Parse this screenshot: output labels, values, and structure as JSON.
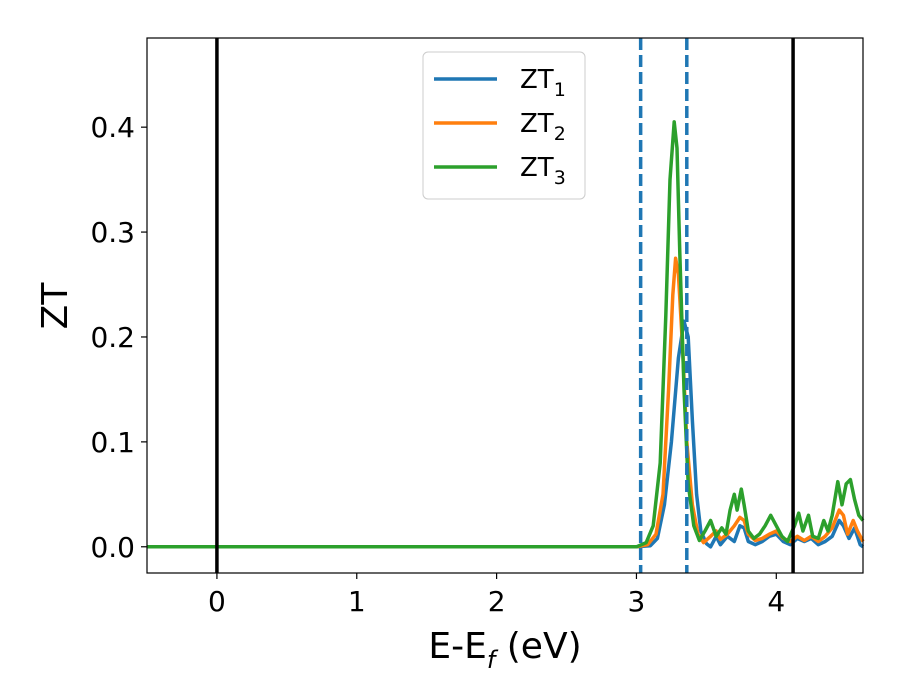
{
  "chart_data": {
    "type": "line",
    "title": "",
    "xlabel": {
      "main": "E-E",
      "sub": "f",
      "unit": " (eV)"
    },
    "ylabel": "ZT",
    "xlim": [
      -0.5,
      4.62
    ],
    "ylim": [
      -0.025,
      0.485
    ],
    "xticks": [
      0,
      1,
      2,
      3,
      4
    ],
    "xtick_labels": [
      "0",
      "1",
      "2",
      "3",
      "4"
    ],
    "yticks": [
      0.0,
      0.1,
      0.2,
      0.3,
      0.4
    ],
    "ytick_labels": [
      "0.0",
      "0.1",
      "0.2",
      "0.3",
      "0.4"
    ],
    "grid": false,
    "legend_position": "top-center",
    "colors": {
      "ZT1": "#1f77b4",
      "ZT2": "#ff7f0e",
      "ZT3": "#2ca02c",
      "ref": "#000000"
    },
    "vertical_lines": [
      {
        "x": 0.0,
        "style": "solid",
        "color": "#000000"
      },
      {
        "x": 4.12,
        "style": "solid",
        "color": "#000000"
      },
      {
        "x": 3.03,
        "style": "dashed",
        "color": "#1f77b4"
      },
      {
        "x": 3.36,
        "style": "dashed",
        "color": "#1f77b4"
      }
    ],
    "series": [
      {
        "name": {
          "main": "ZT",
          "sub": "1"
        },
        "color": "#1f77b4",
        "points": [
          [
            -0.5,
            0
          ],
          [
            3.0,
            0
          ],
          [
            3.1,
            0.001
          ],
          [
            3.15,
            0.008
          ],
          [
            3.2,
            0.04
          ],
          [
            3.25,
            0.1
          ],
          [
            3.3,
            0.18
          ],
          [
            3.34,
            0.215
          ],
          [
            3.37,
            0.2
          ],
          [
            3.4,
            0.12
          ],
          [
            3.43,
            0.05
          ],
          [
            3.46,
            0.015
          ],
          [
            3.5,
            0.003
          ],
          [
            3.53,
            0.0
          ],
          [
            3.57,
            0.01
          ],
          [
            3.6,
            0.002
          ],
          [
            3.65,
            0.01
          ],
          [
            3.7,
            0.005
          ],
          [
            3.74,
            0.02
          ],
          [
            3.77,
            0.018
          ],
          [
            3.8,
            0.005
          ],
          [
            3.85,
            0.002
          ],
          [
            3.9,
            0.005
          ],
          [
            3.95,
            0.01
          ],
          [
            4.0,
            0.012
          ],
          [
            4.05,
            0.005
          ],
          [
            4.1,
            0.002
          ],
          [
            4.15,
            0.008
          ],
          [
            4.2,
            0.005
          ],
          [
            4.25,
            0.008
          ],
          [
            4.3,
            0.002
          ],
          [
            4.35,
            0.005
          ],
          [
            4.4,
            0.01
          ],
          [
            4.45,
            0.025
          ],
          [
            4.48,
            0.02
          ],
          [
            4.52,
            0.008
          ],
          [
            4.56,
            0.018
          ],
          [
            4.6,
            0.002
          ],
          [
            4.62,
            0.0
          ]
        ]
      },
      {
        "name": {
          "main": "ZT",
          "sub": "2"
        },
        "color": "#ff7f0e",
        "points": [
          [
            -0.5,
            0
          ],
          [
            3.0,
            0
          ],
          [
            3.08,
            0.002
          ],
          [
            3.14,
            0.012
          ],
          [
            3.19,
            0.05
          ],
          [
            3.23,
            0.15
          ],
          [
            3.26,
            0.24
          ],
          [
            3.28,
            0.275
          ],
          [
            3.3,
            0.26
          ],
          [
            3.33,
            0.19
          ],
          [
            3.36,
            0.1
          ],
          [
            3.4,
            0.04
          ],
          [
            3.44,
            0.012
          ],
          [
            3.48,
            0.004
          ],
          [
            3.53,
            0.01
          ],
          [
            3.57,
            0.015
          ],
          [
            3.6,
            0.007
          ],
          [
            3.65,
            0.012
          ],
          [
            3.7,
            0.02
          ],
          [
            3.74,
            0.028
          ],
          [
            3.77,
            0.025
          ],
          [
            3.8,
            0.012
          ],
          [
            3.85,
            0.006
          ],
          [
            3.9,
            0.008
          ],
          [
            3.95,
            0.012
          ],
          [
            4.0,
            0.015
          ],
          [
            4.05,
            0.008
          ],
          [
            4.1,
            0.005
          ],
          [
            4.15,
            0.01
          ],
          [
            4.2,
            0.006
          ],
          [
            4.25,
            0.01
          ],
          [
            4.3,
            0.005
          ],
          [
            4.35,
            0.01
          ],
          [
            4.4,
            0.018
          ],
          [
            4.45,
            0.035
          ],
          [
            4.48,
            0.03
          ],
          [
            4.51,
            0.012
          ],
          [
            4.55,
            0.025
          ],
          [
            4.58,
            0.015
          ],
          [
            4.62,
            0.005
          ]
        ]
      },
      {
        "name": {
          "main": "ZT",
          "sub": "3"
        },
        "color": "#2ca02c",
        "points": [
          [
            -0.5,
            0
          ],
          [
            3.0,
            0
          ],
          [
            3.07,
            0.004
          ],
          [
            3.12,
            0.02
          ],
          [
            3.17,
            0.08
          ],
          [
            3.21,
            0.22
          ],
          [
            3.24,
            0.35
          ],
          [
            3.27,
            0.405
          ],
          [
            3.29,
            0.38
          ],
          [
            3.31,
            0.28
          ],
          [
            3.34,
            0.15
          ],
          [
            3.37,
            0.06
          ],
          [
            3.41,
            0.02
          ],
          [
            3.45,
            0.006
          ],
          [
            3.49,
            0.015
          ],
          [
            3.53,
            0.025
          ],
          [
            3.57,
            0.01
          ],
          [
            3.61,
            0.018
          ],
          [
            3.64,
            0.012
          ],
          [
            3.67,
            0.035
          ],
          [
            3.7,
            0.05
          ],
          [
            3.72,
            0.035
          ],
          [
            3.75,
            0.055
          ],
          [
            3.77,
            0.04
          ],
          [
            3.8,
            0.015
          ],
          [
            3.84,
            0.008
          ],
          [
            3.88,
            0.012
          ],
          [
            3.92,
            0.02
          ],
          [
            3.96,
            0.03
          ],
          [
            4.0,
            0.02
          ],
          [
            4.04,
            0.01
          ],
          [
            4.08,
            0.005
          ],
          [
            4.13,
            0.02
          ],
          [
            4.16,
            0.032
          ],
          [
            4.19,
            0.015
          ],
          [
            4.23,
            0.03
          ],
          [
            4.26,
            0.01
          ],
          [
            4.3,
            0.008
          ],
          [
            4.34,
            0.025
          ],
          [
            4.37,
            0.015
          ],
          [
            4.4,
            0.03
          ],
          [
            4.44,
            0.062
          ],
          [
            4.47,
            0.04
          ],
          [
            4.5,
            0.06
          ],
          [
            4.53,
            0.064
          ],
          [
            4.56,
            0.045
          ],
          [
            4.59,
            0.03
          ],
          [
            4.62,
            0.025
          ]
        ]
      }
    ]
  }
}
